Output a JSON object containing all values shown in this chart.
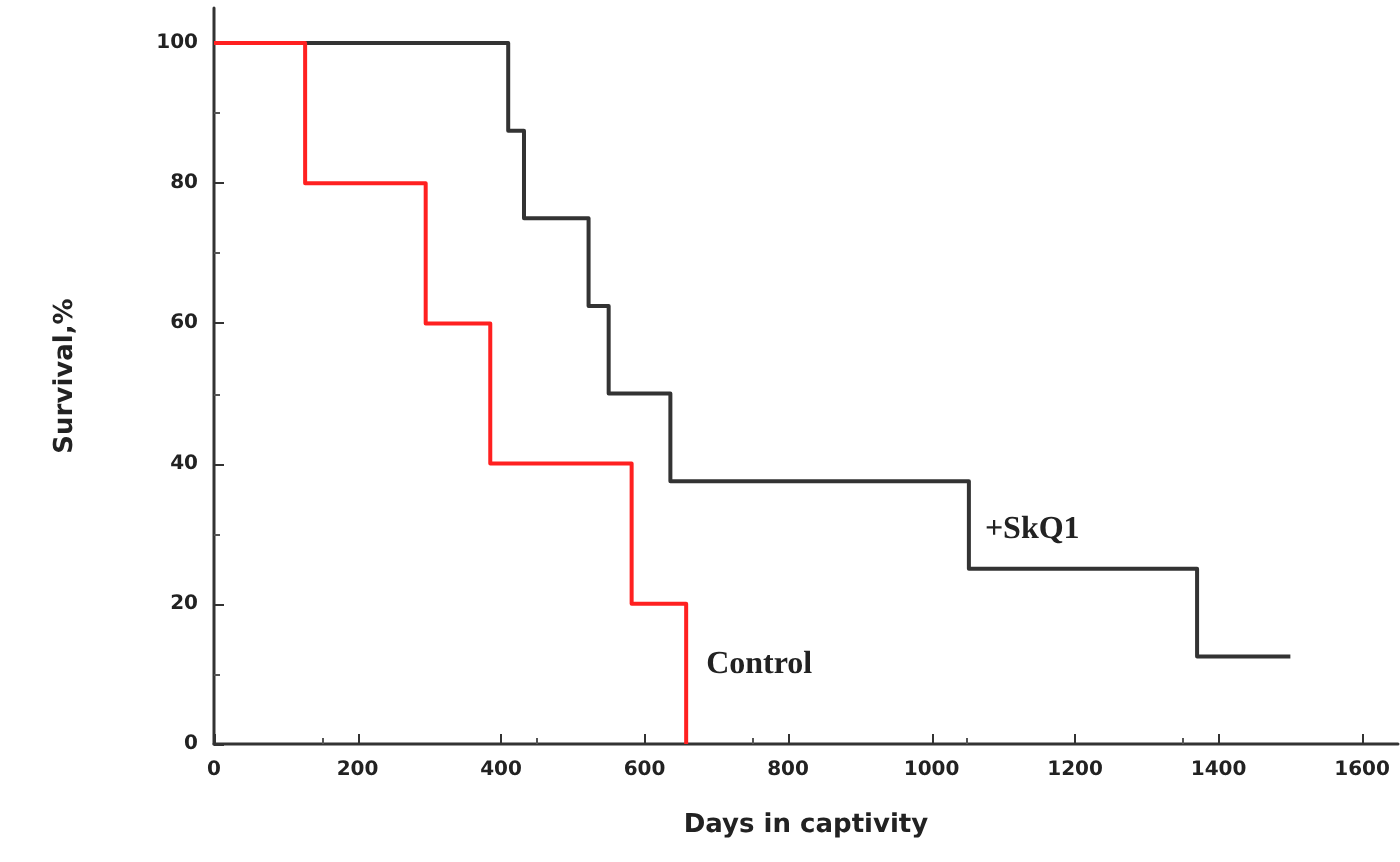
{
  "chart_data": {
    "type": "step",
    "xlabel": "Days in captivity",
    "ylabel": "Survival,%",
    "xlim": [
      0,
      1650
    ],
    "xticks": [
      0,
      200,
      400,
      600,
      800,
      1000,
      1200,
      1400,
      1600
    ],
    "ylim": [
      0,
      105
    ],
    "yticks": [
      0,
      20,
      40,
      60,
      80,
      100
    ],
    "grid": false,
    "legend": false,
    "marker": "none",
    "line_style": "solid",
    "series": [
      {
        "name": "+SkQ1",
        "color": "#333333",
        "x": [
          0,
          410,
          432,
          522,
          550,
          636,
          1052,
          1370,
          1500
        ],
        "values": [
          100,
          87.5,
          75,
          62.5,
          50,
          37.5,
          25,
          12.5,
          12.5
        ]
      },
      {
        "name": "Control",
        "color": "#ff2020",
        "x": [
          0,
          127,
          295,
          385,
          582,
          658
        ],
        "values": [
          100,
          80,
          60,
          40,
          20,
          0
        ]
      }
    ]
  }
}
